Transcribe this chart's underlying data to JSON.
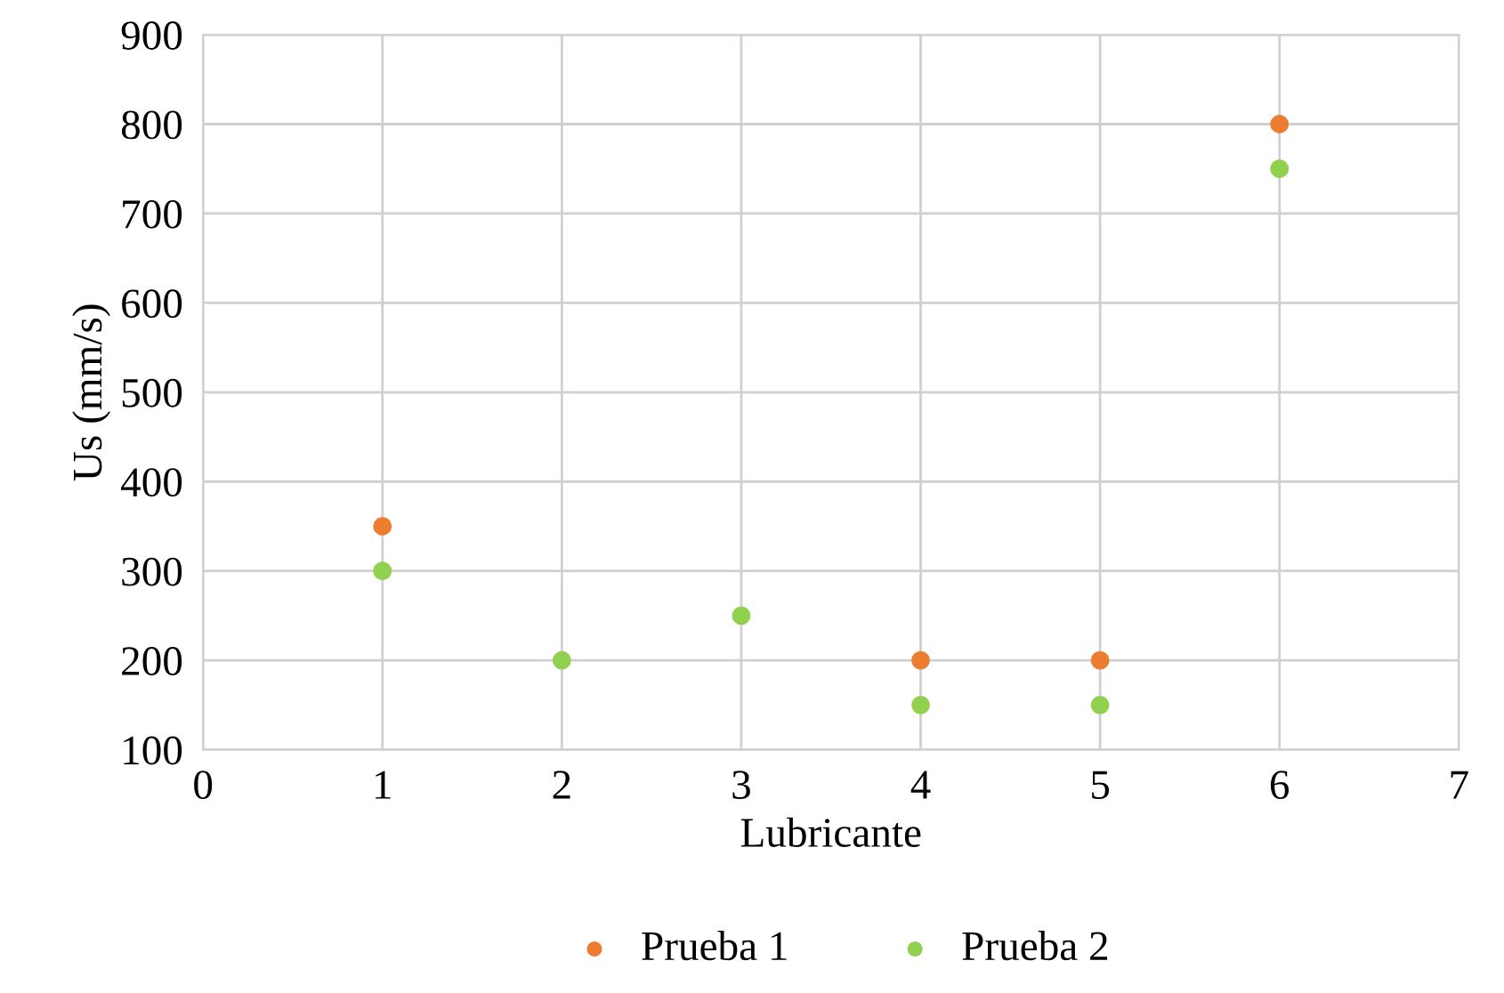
{
  "chart_data": {
    "type": "scatter",
    "xlabel": "Lubricante",
    "ylabel": "Us (mm/s)",
    "x": [
      1,
      2,
      3,
      4,
      5,
      6
    ],
    "series": [
      {
        "name": "Prueba 1",
        "color": "#ed7d31",
        "values": [
          350,
          null,
          null,
          200,
          200,
          800
        ]
      },
      {
        "name": "Prueba 2",
        "color": "#92d050",
        "values": [
          300,
          200,
          250,
          150,
          150,
          750
        ]
      }
    ],
    "xlim": [
      0,
      7
    ],
    "xticks": [
      0,
      1,
      2,
      3,
      4,
      5,
      6,
      7
    ],
    "ylim": [
      100,
      900
    ],
    "yticks": [
      100,
      200,
      300,
      400,
      500,
      600,
      700,
      800,
      900
    ],
    "grid": true,
    "legend": "bottom",
    "marker": "circle"
  }
}
